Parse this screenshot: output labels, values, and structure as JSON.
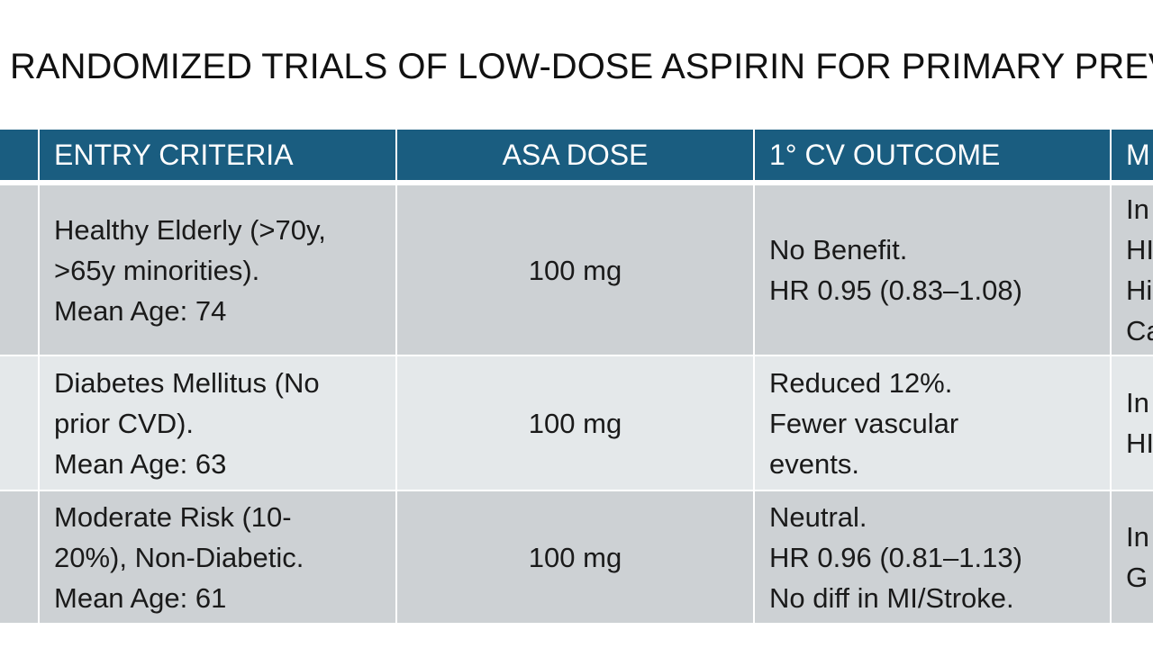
{
  "title": "RANDOMIZED TRIALS OF LOW-DOSE ASPIRIN FOR PRIMARY PREV",
  "columns": {
    "c0": "",
    "c1": "ENTRY CRITERIA",
    "c2": "ASA DOSE",
    "c3": "1° CV OUTCOME",
    "c4": "M"
  },
  "rows": [
    {
      "c0": "",
      "entry": [
        "Healthy Elderly (>70y,",
        ">65y minorities).",
        "Mean Age: 74"
      ],
      "dose": "100 mg",
      "outcome": [
        "No Benefit.",
        "HR 0.95 (0.83–1.08)"
      ],
      "cut": [
        "In",
        "HI",
        "Hi",
        "Ca"
      ]
    },
    {
      "c0": "",
      "entry": [
        "Diabetes Mellitus (No",
        "prior CVD).",
        "Mean Age: 63"
      ],
      "dose": "100 mg",
      "outcome": [
        "Reduced 12%.",
        "Fewer vascular",
        "events."
      ],
      "cut": [
        "In",
        "HI"
      ]
    },
    {
      "c0": "",
      "entry": [
        "Moderate Risk (10-",
        "20%), Non-Diabetic.",
        "Mean Age: 61"
      ],
      "dose": "100 mg",
      "outcome": [
        "Neutral.",
        "HR 0.96 (0.81–1.13)",
        "No diff in MI/Stroke."
      ],
      "cut": [
        "In",
        "G"
      ]
    }
  ]
}
